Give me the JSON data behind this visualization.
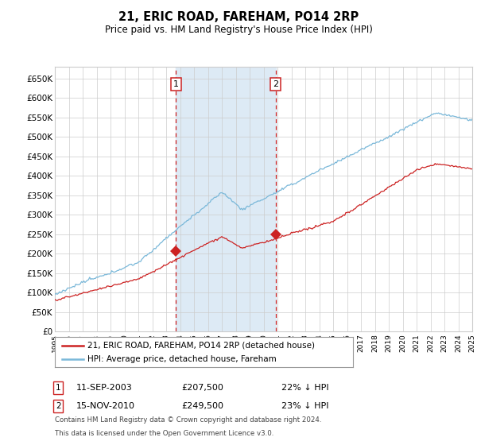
{
  "title": "21, ERIC ROAD, FAREHAM, PO14 2RP",
  "subtitle": "Price paid vs. HM Land Registry's House Price Index (HPI)",
  "legend_line1": "21, ERIC ROAD, FAREHAM, PO14 2RP (detached house)",
  "legend_line2": "HPI: Average price, detached house, Fareham",
  "annotation1_date": "11-SEP-2003",
  "annotation1_price": "£207,500",
  "annotation1_pct": "22% ↓ HPI",
  "annotation2_date": "15-NOV-2010",
  "annotation2_price": "£249,500",
  "annotation2_pct": "23% ↓ HPI",
  "footnote1": "Contains HM Land Registry data © Crown copyright and database right 2024.",
  "footnote2": "This data is licensed under the Open Government Licence v3.0.",
  "hpi_color": "#7ab8d9",
  "price_color": "#cc2222",
  "vline_color": "#cc2222",
  "shade_color": "#ddeaf5",
  "grid_color": "#cccccc",
  "bg_color": "#ffffff",
  "ylim": [
    0,
    680000
  ],
  "yticks": [
    0,
    50000,
    100000,
    150000,
    200000,
    250000,
    300000,
    350000,
    400000,
    450000,
    500000,
    550000,
    600000,
    650000
  ],
  "year_start": 1995,
  "year_end": 2025,
  "purchase1_year": 2003.7,
  "purchase2_year": 2010.875,
  "purchase1_value": 207500,
  "purchase2_value": 249500
}
